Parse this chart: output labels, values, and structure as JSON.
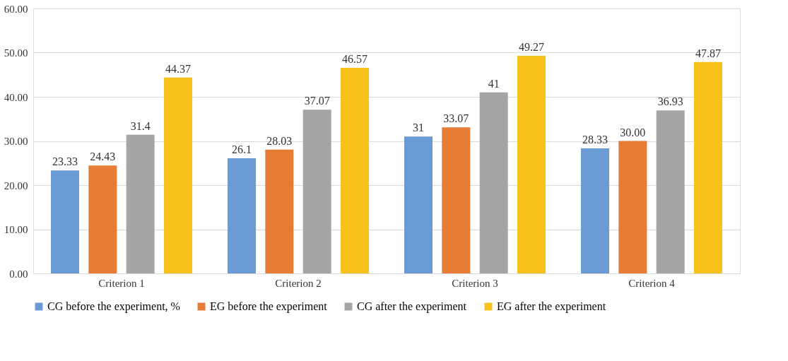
{
  "chart_data": {
    "type": "bar",
    "categories": [
      "Criterion 1",
      "Criterion 2",
      "Criterion 3",
      "Criterion 4"
    ],
    "series": [
      {
        "name": "CG before the experiment, %",
        "color": "#6a9bd4",
        "values": [
          23.33,
          26.1,
          31,
          28.33
        ],
        "value_labels": [
          "23.33",
          "26.1",
          "31",
          "28.33"
        ]
      },
      {
        "name": "EG before the experiment",
        "color": "#e67c36",
        "values": [
          24.43,
          28.03,
          33.07,
          30.0
        ],
        "value_labels": [
          "24.43",
          "28.03",
          "33.07",
          "30.00"
        ]
      },
      {
        "name": "CG after the experiment",
        "color": "#a5a5a5",
        "values": [
          31.4,
          37.07,
          41,
          36.93
        ],
        "value_labels": [
          "31.4",
          "37.07",
          "41",
          "36.93"
        ]
      },
      {
        "name": "EG after the experiment",
        "color": "#f7c21b",
        "values": [
          44.37,
          46.57,
          49.27,
          47.87
        ],
        "value_labels": [
          "44.37",
          "46.57",
          "49.27",
          "47.87"
        ]
      }
    ],
    "ylim": [
      0,
      60
    ],
    "yticks": [
      {
        "value": 0,
        "label": "0.00"
      },
      {
        "value": 10,
        "label": "10.00"
      },
      {
        "value": 20,
        "label": "20.00"
      },
      {
        "value": 30,
        "label": "30.00"
      },
      {
        "value": 40,
        "label": "40.00"
      },
      {
        "value": 50,
        "label": "50.00"
      },
      {
        "value": 60,
        "label": "60.00"
      }
    ],
    "grid": "y",
    "legend": "bottom"
  }
}
